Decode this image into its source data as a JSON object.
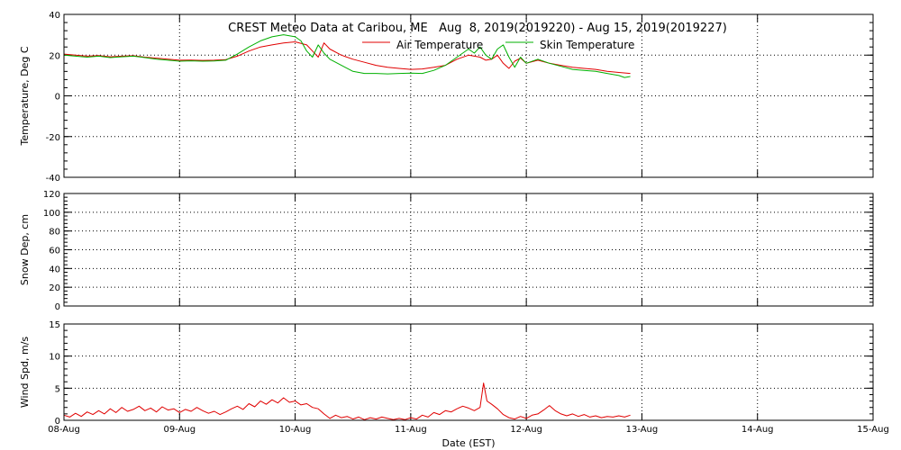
{
  "chart_data": {
    "type": "line",
    "title": "CREST Meteo Data at Caribou, ME   Aug  8, 2019(2019220) - Aug 15, 2019(2019227)",
    "xlabel": "Date (EST)",
    "x_ticks": [
      "08-Aug",
      "09-Aug",
      "10-Aug",
      "11-Aug",
      "12-Aug",
      "13-Aug",
      "14-Aug",
      "15-Aug"
    ],
    "xlim": [
      0,
      7
    ],
    "grid": true,
    "legend_position": "top-center",
    "panels": [
      {
        "id": "temperature",
        "ylabel": "Temperature, Deg C",
        "ylim": [
          -40,
          40
        ],
        "yticks": [
          -40,
          -20,
          0,
          20,
          40
        ],
        "series": [
          {
            "name": "Air Temperature",
            "color": "#e00000",
            "points": [
              [
                0,
                20.5
              ],
              [
                0.1,
                20
              ],
              [
                0.2,
                19.5
              ],
              [
                0.3,
                19.8
              ],
              [
                0.4,
                19.2
              ],
              [
                0.5,
                19.5
              ],
              [
                0.6,
                19.7
              ],
              [
                0.7,
                19
              ],
              [
                0.8,
                18.5
              ],
              [
                0.9,
                18
              ],
              [
                1.0,
                17.5
              ],
              [
                1.1,
                17.6
              ],
              [
                1.2,
                17.4
              ],
              [
                1.3,
                17.5
              ],
              [
                1.4,
                17.8
              ],
              [
                1.5,
                19.5
              ],
              [
                1.6,
                22
              ],
              [
                1.7,
                24
              ],
              [
                1.8,
                25
              ],
              [
                1.9,
                26
              ],
              [
                2.0,
                26.5
              ],
              [
                2.1,
                25
              ],
              [
                2.15,
                22
              ],
              [
                2.2,
                19
              ],
              [
                2.25,
                26
              ],
              [
                2.3,
                23
              ],
              [
                2.4,
                20
              ],
              [
                2.5,
                18
              ],
              [
                2.6,
                16.5
              ],
              [
                2.7,
                15
              ],
              [
                2.8,
                14
              ],
              [
                2.9,
                13.5
              ],
              [
                3.0,
                13
              ],
              [
                3.1,
                13.2
              ],
              [
                3.2,
                14
              ],
              [
                3.3,
                15
              ],
              [
                3.4,
                18
              ],
              [
                3.5,
                20
              ],
              [
                3.6,
                19
              ],
              [
                3.65,
                17.5
              ],
              [
                3.7,
                18
              ],
              [
                3.75,
                20
              ],
              [
                3.8,
                16
              ],
              [
                3.85,
                13.5
              ],
              [
                3.9,
                17
              ],
              [
                3.95,
                18.5
              ],
              [
                4.0,
                16
              ],
              [
                4.1,
                17.5
              ],
              [
                4.2,
                16
              ],
              [
                4.3,
                15
              ],
              [
                4.4,
                14
              ],
              [
                4.5,
                13.5
              ],
              [
                4.6,
                13
              ],
              [
                4.7,
                12
              ],
              [
                4.8,
                11.5
              ],
              [
                4.9,
                11
              ]
            ]
          },
          {
            "name": "Skin Temperature",
            "color": "#00b000",
            "points": [
              [
                0,
                20
              ],
              [
                0.1,
                19.5
              ],
              [
                0.2,
                19
              ],
              [
                0.3,
                19.5
              ],
              [
                0.4,
                18.8
              ],
              [
                0.5,
                19.2
              ],
              [
                0.6,
                19.5
              ],
              [
                0.7,
                18.8
              ],
              [
                0.8,
                18
              ],
              [
                0.9,
                17.5
              ],
              [
                1.0,
                17
              ],
              [
                1.1,
                17.2
              ],
              [
                1.2,
                17
              ],
              [
                1.3,
                17.1
              ],
              [
                1.4,
                17.5
              ],
              [
                1.5,
                20.5
              ],
              [
                1.6,
                24
              ],
              [
                1.7,
                27
              ],
              [
                1.8,
                29
              ],
              [
                1.9,
                30
              ],
              [
                2.0,
                29
              ],
              [
                2.05,
                27
              ],
              [
                2.1,
                22
              ],
              [
                2.15,
                19
              ],
              [
                2.2,
                25
              ],
              [
                2.25,
                21
              ],
              [
                2.3,
                18
              ],
              [
                2.4,
                15
              ],
              [
                2.5,
                12
              ],
              [
                2.6,
                11
              ],
              [
                2.7,
                11
              ],
              [
                2.8,
                10.8
              ],
              [
                2.9,
                11
              ],
              [
                3.0,
                11.2
              ],
              [
                3.1,
                11
              ],
              [
                3.2,
                12.5
              ],
              [
                3.3,
                15
              ],
              [
                3.4,
                19
              ],
              [
                3.5,
                23
              ],
              [
                3.55,
                21
              ],
              [
                3.6,
                24
              ],
              [
                3.65,
                20
              ],
              [
                3.7,
                18
              ],
              [
                3.75,
                23
              ],
              [
                3.8,
                25
              ],
              [
                3.85,
                19
              ],
              [
                3.9,
                14
              ],
              [
                3.95,
                19
              ],
              [
                4.0,
                16
              ],
              [
                4.1,
                18
              ],
              [
                4.2,
                16
              ],
              [
                4.3,
                14.5
              ],
              [
                4.4,
                13
              ],
              [
                4.5,
                12.5
              ],
              [
                4.6,
                12
              ],
              [
                4.7,
                11
              ],
              [
                4.8,
                10
              ],
              [
                4.85,
                9
              ],
              [
                4.9,
                9.5
              ]
            ]
          }
        ]
      },
      {
        "id": "snow",
        "ylabel": "Snow Dep, cm",
        "ylim": [
          0,
          120
        ],
        "yticks": [
          0,
          20,
          40,
          60,
          80,
          100,
          120
        ],
        "series": []
      },
      {
        "id": "wind",
        "ylabel": "Wind Spd, m/s",
        "ylim": [
          0,
          15
        ],
        "yticks": [
          0,
          5,
          10,
          15
        ],
        "series": [
          {
            "name": "Wind Speed",
            "color": "#e00000",
            "points": [
              [
                0,
                0.8
              ],
              [
                0.05,
                0.5
              ],
              [
                0.1,
                1.1
              ],
              [
                0.15,
                0.6
              ],
              [
                0.2,
                1.3
              ],
              [
                0.25,
                0.9
              ],
              [
                0.3,
                1.5
              ],
              [
                0.35,
                1.0
              ],
              [
                0.4,
                1.8
              ],
              [
                0.45,
                1.2
              ],
              [
                0.5,
                2.0
              ],
              [
                0.55,
                1.4
              ],
              [
                0.6,
                1.7
              ],
              [
                0.65,
                2.2
              ],
              [
                0.7,
                1.5
              ],
              [
                0.75,
                1.9
              ],
              [
                0.8,
                1.3
              ],
              [
                0.85,
                2.1
              ],
              [
                0.9,
                1.6
              ],
              [
                0.95,
                1.8
              ],
              [
                1.0,
                1.2
              ],
              [
                1.05,
                1.7
              ],
              [
                1.1,
                1.4
              ],
              [
                1.15,
                2.0
              ],
              [
                1.2,
                1.5
              ],
              [
                1.25,
                1.1
              ],
              [
                1.3,
                1.4
              ],
              [
                1.35,
                0.9
              ],
              [
                1.4,
                1.3
              ],
              [
                1.45,
                1.8
              ],
              [
                1.5,
                2.2
              ],
              [
                1.55,
                1.7
              ],
              [
                1.6,
                2.6
              ],
              [
                1.65,
                2.1
              ],
              [
                1.7,
                3.0
              ],
              [
                1.75,
                2.5
              ],
              [
                1.8,
                3.2
              ],
              [
                1.85,
                2.7
              ],
              [
                1.9,
                3.5
              ],
              [
                1.95,
                2.8
              ],
              [
                2.0,
                3.0
              ],
              [
                2.05,
                2.4
              ],
              [
                2.1,
                2.6
              ],
              [
                2.15,
                2.0
              ],
              [
                2.2,
                1.8
              ],
              [
                2.25,
                1.0
              ],
              [
                2.3,
                0.3
              ],
              [
                2.35,
                0.8
              ],
              [
                2.4,
                0.4
              ],
              [
                2.45,
                0.6
              ],
              [
                2.5,
                0.2
              ],
              [
                2.55,
                0.5
              ],
              [
                2.6,
                0.1
              ],
              [
                2.65,
                0.4
              ],
              [
                2.7,
                0.2
              ],
              [
                2.75,
                0.5
              ],
              [
                2.8,
                0.3
              ],
              [
                2.85,
                0.1
              ],
              [
                2.9,
                0.3
              ],
              [
                2.95,
                0.1
              ],
              [
                3.0,
                0.4
              ],
              [
                3.05,
                0.2
              ],
              [
                3.1,
                0.8
              ],
              [
                3.15,
                0.5
              ],
              [
                3.2,
                1.2
              ],
              [
                3.25,
                0.9
              ],
              [
                3.3,
                1.5
              ],
              [
                3.35,
                1.3
              ],
              [
                3.4,
                1.8
              ],
              [
                3.45,
                2.2
              ],
              [
                3.5,
                1.9
              ],
              [
                3.55,
                1.5
              ],
              [
                3.6,
                2.0
              ],
              [
                3.63,
                5.8
              ],
              [
                3.66,
                3.0
              ],
              [
                3.7,
                2.5
              ],
              [
                3.75,
                1.8
              ],
              [
                3.8,
                0.9
              ],
              [
                3.85,
                0.4
              ],
              [
                3.9,
                0.2
              ],
              [
                3.95,
                0.6
              ],
              [
                4.0,
                0.3
              ],
              [
                4.05,
                0.8
              ],
              [
                4.1,
                1.0
              ],
              [
                4.15,
                1.6
              ],
              [
                4.2,
                2.3
              ],
              [
                4.25,
                1.5
              ],
              [
                4.3,
                1.0
              ],
              [
                4.35,
                0.7
              ],
              [
                4.4,
                1.0
              ],
              [
                4.45,
                0.6
              ],
              [
                4.5,
                0.9
              ],
              [
                4.55,
                0.5
              ],
              [
                4.6,
                0.7
              ],
              [
                4.65,
                0.4
              ],
              [
                4.7,
                0.6
              ],
              [
                4.75,
                0.5
              ],
              [
                4.8,
                0.7
              ],
              [
                4.85,
                0.5
              ],
              [
                4.9,
                0.8
              ]
            ]
          }
        ]
      }
    ]
  }
}
